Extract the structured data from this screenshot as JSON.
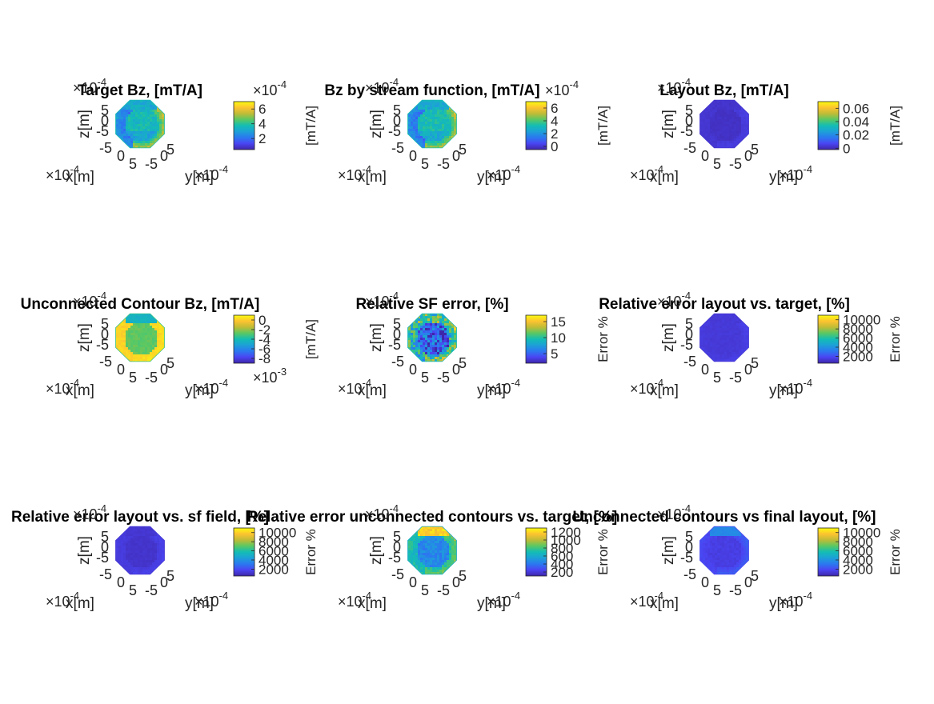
{
  "figure": {
    "colormap": [
      "#3e26a8",
      "#4a44f2",
      "#2b78f0",
      "#1da0d8",
      "#13bdb4",
      "#5ac863",
      "#c0bc36",
      "#fdc330",
      "#f9fb0e"
    ]
  },
  "chart_data": [
    {
      "type": "heatmap",
      "title": "Target Bz, [mT/A]",
      "xlabel": "x[m]",
      "ylabel": "y[m]",
      "zlabel": "z[m]",
      "axis_exponent": "×10",
      "axis_exponent_power": "-4",
      "xticks": [
        "-5",
        "0",
        "5"
      ],
      "yticks": [
        "-5",
        "0",
        "5"
      ],
      "zticks": [
        "-5",
        "0",
        "5"
      ],
      "colorbar": {
        "label": "[mT/A]",
        "ticks": [
          "6",
          "4",
          "2"
        ],
        "exponent": "×10",
        "exponent_power": "-4",
        "exponent_position": "top",
        "range": [
          0.5,
          7
        ]
      },
      "field": {
        "base": 0.48,
        "ring": 0.5,
        "ring_edge": 0.85,
        "ring_left": 0.15,
        "top_band": 0.42,
        "noise": 0.12,
        "lower_shade": 0.08
      }
    },
    {
      "type": "heatmap",
      "title": "Bz by stream function, [mT/A]",
      "xlabel": "x[m]",
      "ylabel": "y[m]",
      "zlabel": "z[m]",
      "axis_exponent": "×10",
      "axis_exponent_power": "-4",
      "xticks": [
        "-5",
        "0",
        "5"
      ],
      "yticks": [
        "-5",
        "0",
        "5"
      ],
      "zticks": [
        "-5",
        "0",
        "5"
      ],
      "colorbar": {
        "label": "[mT/A]",
        "ticks": [
          "6",
          "4",
          "2",
          "0"
        ],
        "exponent": "×10",
        "exponent_power": "-4",
        "exponent_position": "top",
        "range": [
          -0.5,
          7
        ]
      },
      "field": {
        "base": 0.5,
        "ring": 0.48,
        "ring_edge": 0.85,
        "ring_left": 0.12,
        "top_band": 0.42,
        "noise": 0.12,
        "lower_shade": 0.08
      }
    },
    {
      "type": "heatmap",
      "title": "Layout Bz, [mT/A]",
      "xlabel": "x[m]",
      "ylabel": "y[m]",
      "zlabel": "z[m]",
      "axis_exponent": "×10",
      "axis_exponent_power": "-4",
      "xticks": [
        "-5",
        "0",
        "5"
      ],
      "yticks": [
        "-5",
        "0",
        "5"
      ],
      "zticks": [
        "-5",
        "0",
        "5"
      ],
      "colorbar": {
        "label": "[mT/A]",
        "ticks": [
          "0.06",
          "0.04",
          "0.02",
          "0"
        ],
        "exponent": "",
        "exponent_power": "",
        "exponent_position": "none",
        "range": [
          -0.002,
          0.07
        ]
      },
      "field": {
        "base": 0.05,
        "ring": 0.08,
        "ring_edge": 0.1,
        "ring_left": 0.06,
        "top_band": 0.06,
        "noise": 0.02,
        "lower_shade": 0.0
      }
    },
    {
      "type": "heatmap",
      "title": "Unconnected Contour Bz, [mT/A]",
      "xlabel": "x[m]",
      "ylabel": "y[m]",
      "zlabel": "z[m]",
      "axis_exponent": "×10",
      "axis_exponent_power": "-4",
      "xticks": [
        "-5",
        "0",
        "5"
      ],
      "yticks": [
        "-5",
        "0",
        "5"
      ],
      "zticks": [
        "-5",
        "0",
        "5"
      ],
      "colorbar": {
        "label": "[mT/A]",
        "ticks": [
          "0",
          "-2",
          "-4",
          "-6",
          "-8"
        ],
        "exponent": "×10",
        "exponent_power": "-3",
        "exponent_position": "bottom",
        "range": [
          -9,
          1
        ]
      },
      "field": {
        "base": 0.63,
        "ring": 0.92,
        "ring_edge": 0.95,
        "ring_left": 0.9,
        "top_band": 0.45,
        "noise": 0.05,
        "lower_shade": 0.0
      }
    },
    {
      "type": "heatmap",
      "title": "Relative SF error, [%]",
      "xlabel": "x[m]",
      "ylabel": "y[m]",
      "zlabel": "z[m]",
      "axis_exponent": "×10",
      "axis_exponent_power": "-4",
      "xticks": [
        "-5",
        "0",
        "5"
      ],
      "yticks": [
        "-5",
        "0",
        "5"
      ],
      "zticks": [
        "-5",
        "0",
        "5"
      ],
      "colorbar": {
        "label": "Error %",
        "ticks": [
          "15",
          "10",
          "5"
        ],
        "exponent": "",
        "exponent_power": "",
        "exponent_position": "none",
        "range": [
          2,
          17
        ]
      },
      "field": {
        "base": 0.18,
        "ring": 0.45,
        "ring_edge": 0.8,
        "ring_left": 0.4,
        "top_band": 0.55,
        "noise": 0.45,
        "lower_shade": 0.0
      }
    },
    {
      "type": "heatmap",
      "title": "Relative error layout vs. target, [%]",
      "xlabel": "x[m]",
      "ylabel": "y[m]",
      "zlabel": "z[m]",
      "axis_exponent": "×10",
      "axis_exponent_power": "-4",
      "xticks": [
        "-5",
        "0",
        "5"
      ],
      "yticks": [
        "-5",
        "0",
        "5"
      ],
      "zticks": [
        "-5",
        "0",
        "5"
      ],
      "colorbar": {
        "label": "Error %",
        "ticks": [
          "10000",
          "8000",
          "6000",
          "4000",
          "2000"
        ],
        "exponent": "",
        "exponent_power": "",
        "exponent_position": "none",
        "range": [
          500,
          11000
        ]
      },
      "field": {
        "base": 0.08,
        "ring": 0.08,
        "ring_edge": 0.12,
        "ring_left": 0.08,
        "top_band": 0.08,
        "noise": 0.02,
        "lower_shade": 0.0
      }
    },
    {
      "type": "heatmap",
      "title": "Relative error layout vs. sf field, [%]",
      "xlabel": "x[m]",
      "ylabel": "y[m]",
      "zlabel": "z[m]",
      "axis_exponent": "×10",
      "axis_exponent_power": "-4",
      "xticks": [
        "-5",
        "0",
        "5"
      ],
      "yticks": [
        "-5",
        "0",
        "5"
      ],
      "zticks": [
        "-5",
        "0",
        "5"
      ],
      "colorbar": {
        "label": "Error %",
        "ticks": [
          "10000",
          "8000",
          "6000",
          "4000",
          "2000"
        ],
        "exponent": "",
        "exponent_power": "",
        "exponent_position": "none",
        "range": [
          500,
          11000
        ]
      },
      "field": {
        "base": 0.06,
        "ring": 0.09,
        "ring_edge": 0.12,
        "ring_left": 0.08,
        "top_band": 0.07,
        "noise": 0.02,
        "lower_shade": 0.0
      }
    },
    {
      "type": "heatmap",
      "title": "Relative error unconnected contours vs. target, [%]",
      "xlabel": "x[m]",
      "ylabel": "y[m]",
      "zlabel": "z[m]",
      "axis_exponent": "×10",
      "axis_exponent_power": "-4",
      "xticks": [
        "-5",
        "0",
        "5"
      ],
      "yticks": [
        "-5",
        "0",
        "5"
      ],
      "zticks": [
        "-5",
        "0",
        "5"
      ],
      "colorbar": {
        "label": "Error %",
        "ticks": [
          "1200",
          "1000",
          "800",
          "600",
          "400",
          "200"
        ],
        "exponent": "",
        "exponent_power": "",
        "exponent_position": "none",
        "range": [
          100,
          1300
        ]
      },
      "field": {
        "base": 0.3,
        "ring": 0.52,
        "ring_edge": 0.7,
        "ring_left": 0.45,
        "top_band": 0.9,
        "noise": 0.12,
        "lower_shade": 0.0
      }
    },
    {
      "type": "heatmap",
      "title": "Unconnected contours vs final layout, [%]",
      "xlabel": "x[m]",
      "ylabel": "y[m]",
      "zlabel": "z[m]",
      "axis_exponent": "×10",
      "axis_exponent_power": "-4",
      "xticks": [
        "-5",
        "0",
        "5"
      ],
      "yticks": [
        "-5",
        "0",
        "5"
      ],
      "zticks": [
        "-5",
        "0",
        "5"
      ],
      "colorbar": {
        "label": "Error %",
        "ticks": [
          "10000",
          "8000",
          "6000",
          "4000",
          "2000"
        ],
        "exponent": "",
        "exponent_power": "",
        "exponent_position": "none",
        "range": [
          500,
          11000
        ]
      },
      "field": {
        "base": 0.1,
        "ring": 0.12,
        "ring_edge": 0.22,
        "ring_left": 0.1,
        "top_band": 0.3,
        "noise": 0.03,
        "lower_shade": 0.0
      }
    }
  ]
}
